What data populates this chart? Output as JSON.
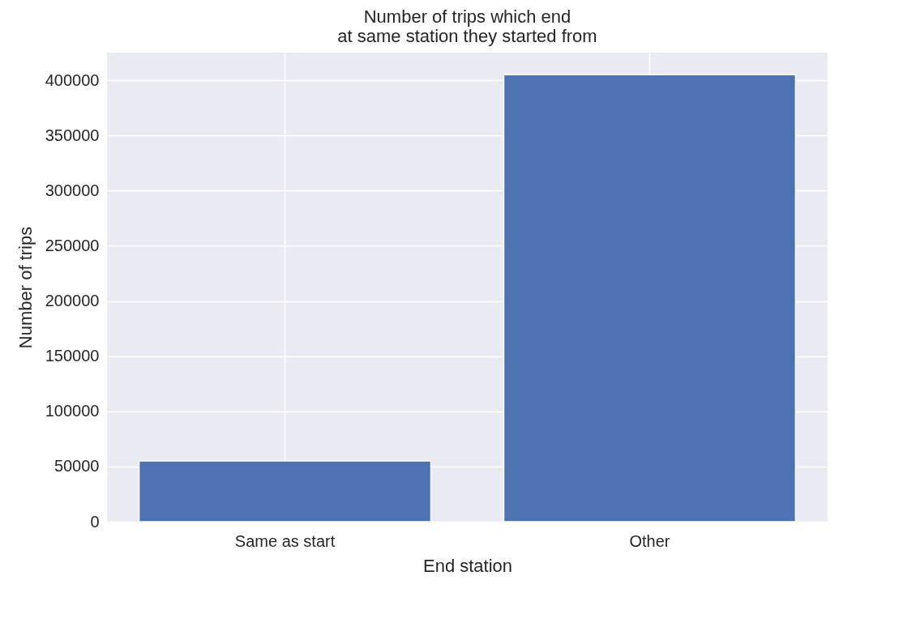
{
  "chart_data": {
    "type": "bar",
    "title": "Number of trips which end\nat same station they started from",
    "xlabel": "End station",
    "ylabel": "Number of trips",
    "categories": [
      "Same as start",
      "Other"
    ],
    "values": [
      55000,
      405000
    ],
    "color": "#4c72b0",
    "ylim": [
      0,
      425000
    ],
    "yticks": [
      0,
      50000,
      100000,
      150000,
      200000,
      250000,
      300000,
      350000,
      400000
    ],
    "grid": true
  }
}
